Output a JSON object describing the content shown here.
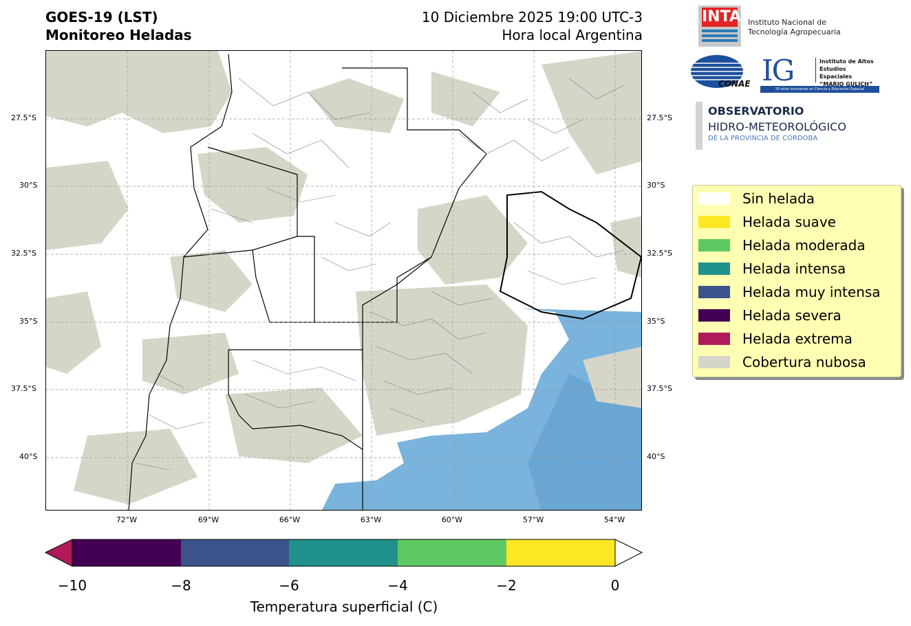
{
  "title": {
    "line1": "GOES-19 (LST)",
    "line2": "Monitoreo Heladas",
    "date": "10 Diciembre 2025 19:00 UTC-3",
    "local": "Hora local Argentina"
  },
  "map": {
    "lat_ticks": [
      "27.5°S",
      "30°S",
      "32.5°S",
      "35°S",
      "37.5°S",
      "40°S"
    ],
    "lon_ticks": [
      "72°W",
      "69°W",
      "66°W",
      "63°W",
      "60°W",
      "57°W",
      "54°W"
    ]
  },
  "legend": [
    {
      "label": "Sin helada",
      "color": "#ffffff"
    },
    {
      "label": "Helada suave",
      "color": "#fde725"
    },
    {
      "label": "Helada moderada",
      "color": "#5ec962"
    },
    {
      "label": "Helada intensa",
      "color": "#21918c"
    },
    {
      "label": "Helada muy intensa",
      "color": "#3b528b"
    },
    {
      "label": "Helada severa",
      "color": "#440154"
    },
    {
      "label": "Helada extrema",
      "color": "#b01a5a"
    },
    {
      "label": "Cobertura nubosa",
      "color": "#d6d6c8"
    }
  ],
  "colorbar": {
    "ticks": [
      "−10",
      "−8",
      "−6",
      "−4",
      "−2",
      "0"
    ],
    "title": "Temperatura superficial (C)",
    "segments": [
      "#440154",
      "#3b528b",
      "#21918c",
      "#5ec962",
      "#fde725"
    ],
    "under_color": "#b01a5a",
    "over_color": "#ffffff"
  },
  "logos": {
    "inta_mark": "INTA",
    "inta_name_1": "Instituto Nacional de",
    "inta_name_2": "Tecnología Agropecuaria",
    "conae": "CONAE",
    "ig_mark": "IG",
    "ig_name_1": "Instituto de Altos",
    "ig_name_2": "Estudios Espaciales",
    "ig_name_3": "“MARIO GULICH”",
    "ig_tagline": "20 años innovando en Ciencia y Educación Espacial",
    "obs_1": "OBSERVATORIO",
    "obs_2": "HIDRO-METEOROLÓGICO",
    "obs_3": "DE LA PROVINCIA DE CÓRDOBA"
  }
}
